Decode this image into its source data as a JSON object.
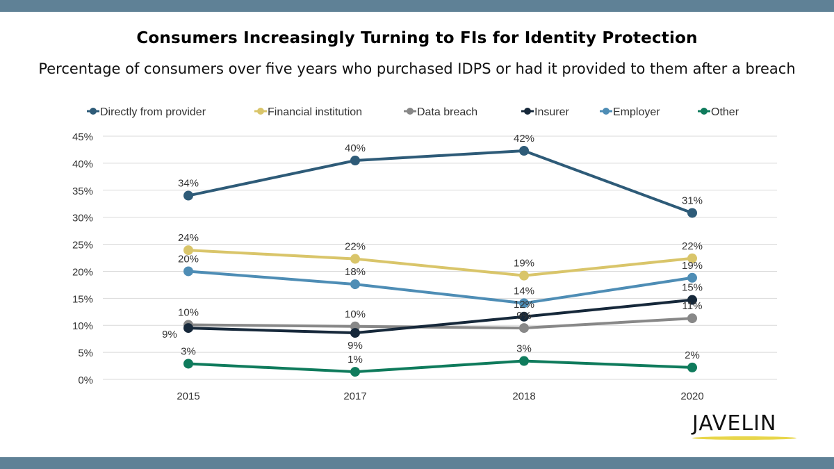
{
  "header": {
    "title": "Consumers Increasingly Turning to FIs for Identity Protection",
    "subtitle": "Percentage of consumers over five years who purchased IDPS or had it provided to them after a breach"
  },
  "logo": {
    "text": "JAVELIN",
    "accent_color": "#e8d64a"
  },
  "colors": {
    "band": "#5f8196",
    "grid": "#d9d9d9",
    "axis_text": "#333333"
  },
  "chart_data": {
    "type": "line",
    "title": "",
    "xlabel": "",
    "ylabel": "",
    "categories": [
      "2015",
      "2017",
      "2018",
      "2020"
    ],
    "ylim": [
      0,
      45
    ],
    "yticks": [
      "0%",
      "5%",
      "10%",
      "15%",
      "20%",
      "25%",
      "30%",
      "35%",
      "40%",
      "45%"
    ],
    "grid": true,
    "legend_position": "top",
    "series": [
      {
        "name": "Directly from provider",
        "color": "#2e5b78",
        "values": [
          34,
          40.5,
          42.3,
          30.8
        ],
        "labels": [
          "34%",
          "40%",
          "42%",
          "31%"
        ],
        "label_pos": [
          "above",
          "above",
          "above",
          "above"
        ]
      },
      {
        "name": "Financial institution",
        "color": "#d9c56a",
        "values": [
          23.9,
          22.3,
          19.2,
          22.4
        ],
        "labels": [
          "24%",
          "22%",
          "19%",
          "22%"
        ],
        "label_pos": [
          "above",
          "above",
          "above",
          "above"
        ]
      },
      {
        "name": "Data breach",
        "color": "#888888",
        "values": [
          10.1,
          9.8,
          9.5,
          11.3
        ],
        "labels": [
          "10%",
          "10%",
          "9%",
          "11%"
        ],
        "label_pos": [
          "above",
          "above",
          "above",
          "above"
        ]
      },
      {
        "name": "Insurer",
        "color": "#16283a",
        "values": [
          9.5,
          8.6,
          11.6,
          14.7
        ],
        "labels": [
          "9%",
          "9%",
          "12%",
          "15%"
        ],
        "label_pos": [
          "left",
          "below",
          "above",
          "above"
        ]
      },
      {
        "name": "Employer",
        "color": "#4e8db5",
        "values": [
          20,
          17.6,
          14.1,
          18.8
        ],
        "labels": [
          "20%",
          "18%",
          "14%",
          "19%"
        ],
        "label_pos": [
          "above",
          "above",
          "above",
          "above"
        ]
      },
      {
        "name": "Other",
        "color": "#0f7b5c",
        "values": [
          2.9,
          1.4,
          3.4,
          2.2
        ],
        "labels": [
          "3%",
          "1%",
          "3%",
          "2%"
        ],
        "label_pos": [
          "above",
          "above",
          "above",
          "above"
        ]
      }
    ]
  }
}
